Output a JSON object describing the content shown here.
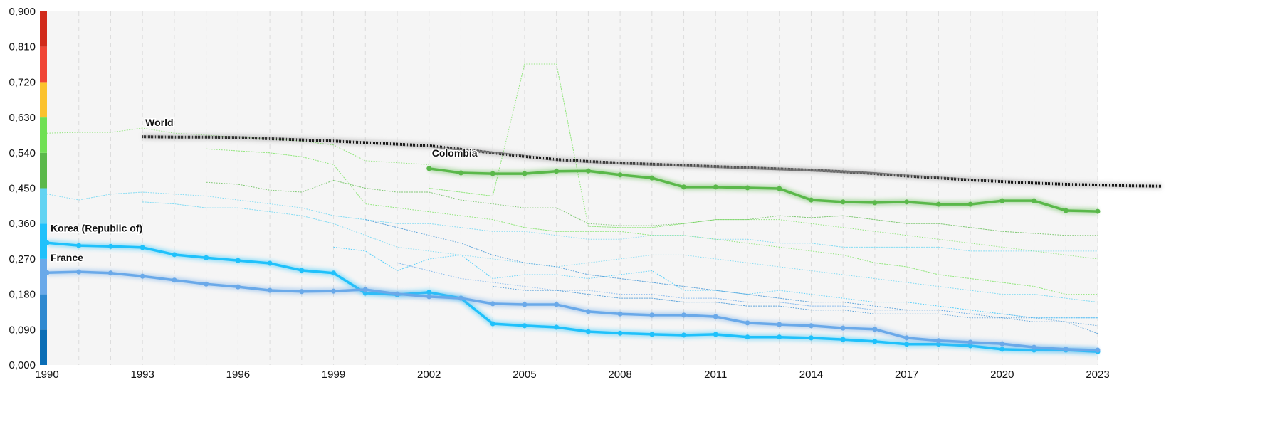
{
  "chart_data": {
    "type": "line",
    "title": "",
    "xlabel": "",
    "ylabel": "",
    "xlim": [
      1990,
      2023
    ],
    "ylim": [
      0,
      0.9
    ],
    "x_ticks": [
      "1990",
      "1993",
      "1996",
      "1999",
      "2002",
      "2005",
      "2008",
      "2011",
      "2014",
      "2017",
      "2020",
      "2023"
    ],
    "y_ticks": [
      "0,000",
      "0,090",
      "0,180",
      "0,270",
      "0,360",
      "0,450",
      "0,540",
      "0,630",
      "0,720",
      "0,810",
      "0,900"
    ],
    "grid": "vertical dashed, yearly",
    "color_scale": [
      "#0a6db5",
      "#2f89d0",
      "#6aa9e9",
      "#1fc1fb",
      "#62d3f2",
      "#5ab84a",
      "#70e054",
      "#fbc22e",
      "#f04535",
      "#d12a1a"
    ],
    "series": [
      {
        "name": "World",
        "color": "#222222",
        "start": 1993,
        "values": [
          0.581,
          0.58,
          0.58,
          0.579,
          0.576,
          0.573,
          0.57,
          0.566,
          0.562,
          0.558,
          0.549,
          0.54,
          0.531,
          0.523,
          0.518,
          0.514,
          0.511,
          0.508,
          0.505,
          0.502,
          0.499,
          0.496,
          0.492,
          0.487,
          0.481,
          0.476,
          0.471,
          0.467,
          0.463,
          0.46,
          0.458,
          0.456,
          0.455
        ]
      },
      {
        "name": "Colombia",
        "color": "#5ab84a",
        "start": 2002,
        "values": [
          0.5,
          0.489,
          0.487,
          0.487,
          0.493,
          0.494,
          0.484,
          0.476,
          0.453,
          0.453,
          0.451,
          0.449,
          0.42,
          0.415,
          0.413,
          0.415,
          0.409,
          0.409,
          0.418,
          0.418,
          0.393,
          0.391
        ]
      },
      {
        "name": "Korea (Republic of)",
        "color": "#1fc1fb",
        "start": 1990,
        "values": [
          0.311,
          0.304,
          0.302,
          0.299,
          0.281,
          0.273,
          0.266,
          0.259,
          0.241,
          0.234,
          0.183,
          0.179,
          0.185,
          0.17,
          0.105,
          0.1,
          0.096,
          0.085,
          0.081,
          0.078,
          0.076,
          0.078,
          0.071,
          0.071,
          0.069,
          0.065,
          0.06,
          0.053,
          0.053,
          0.049,
          0.04,
          0.038,
          0.038,
          0.034
        ]
      },
      {
        "name": "France",
        "color": "#6aa9e9",
        "start": 1990,
        "values": [
          0.235,
          0.237,
          0.234,
          0.226,
          0.216,
          0.206,
          0.199,
          0.19,
          0.187,
          0.188,
          0.192,
          0.181,
          0.174,
          0.17,
          0.156,
          0.154,
          0.154,
          0.136,
          0.13,
          0.127,
          0.127,
          0.123,
          0.107,
          0.103,
          0.1,
          0.094,
          0.091,
          0.069,
          0.062,
          0.058,
          0.054,
          0.045,
          0.04,
          0.038
        ]
      }
    ],
    "background_series": [
      {
        "color": "#70e054",
        "start": 1990,
        "values": [
          0.59,
          0.592,
          0.592,
          0.603,
          0.59,
          0.585,
          0.58,
          0.575,
          0.57,
          0.56,
          0.52,
          0.515,
          0.51
        ]
      },
      {
        "color": "#70e054",
        "start": 2002,
        "values": [
          0.45,
          0.44,
          0.43,
          0.766,
          0.766,
          0.353,
          0.35,
          0.35,
          0.36,
          0.37,
          0.37,
          0.37,
          0.36,
          0.35,
          0.34,
          0.33,
          0.32,
          0.31,
          0.3,
          0.29,
          0.28,
          0.27
        ]
      },
      {
        "color": "#5ab84a",
        "start": 1995,
        "values": [
          0.465,
          0.46,
          0.445,
          0.44,
          0.47,
          0.45,
          0.44,
          0.44,
          0.42,
          0.41,
          0.4,
          0.4,
          0.36,
          0.355,
          0.355,
          0.36,
          0.37,
          0.37,
          0.38,
          0.375,
          0.38,
          0.37,
          0.36,
          0.36,
          0.35,
          0.34,
          0.335,
          0.33,
          0.33
        ]
      },
      {
        "color": "#70e054",
        "start": 1995,
        "values": [
          0.55,
          0.545,
          0.54,
          0.53,
          0.51,
          0.41,
          0.4,
          0.39,
          0.38,
          0.37,
          0.35,
          0.34,
          0.34,
          0.34,
          0.33,
          0.33,
          0.32,
          0.31,
          0.3,
          0.29,
          0.28,
          0.26,
          0.25,
          0.23,
          0.22,
          0.21,
          0.2,
          0.18,
          0.18
        ]
      },
      {
        "color": "#62d3f2",
        "start": 1990,
        "values": [
          0.435,
          0.42,
          0.435,
          0.44,
          0.435,
          0.43,
          0.42,
          0.41,
          0.4,
          0.38,
          0.37,
          0.36,
          0.36,
          0.35,
          0.34,
          0.34,
          0.33,
          0.32,
          0.32,
          0.33,
          0.33,
          0.32,
          0.32,
          0.31,
          0.31,
          0.3,
          0.3,
          0.3,
          0.3,
          0.29,
          0.29,
          0.29,
          0.29,
          0.29
        ]
      },
      {
        "color": "#62d3f2",
        "start": 1993,
        "values": [
          0.415,
          0.41,
          0.4,
          0.4,
          0.39,
          0.38,
          0.36,
          0.33,
          0.3,
          0.29,
          0.28,
          0.27,
          0.26,
          0.25,
          0.26,
          0.27,
          0.28,
          0.28,
          0.27,
          0.26,
          0.25,
          0.24,
          0.23,
          0.22,
          0.21,
          0.2,
          0.19,
          0.18,
          0.18,
          0.17,
          0.16
        ]
      },
      {
        "color": "#1fc1fb",
        "start": 1999,
        "values": [
          0.3,
          0.29,
          0.24,
          0.27,
          0.28,
          0.22,
          0.23,
          0.23,
          0.22,
          0.23,
          0.24,
          0.19,
          0.19,
          0.18,
          0.19,
          0.18,
          0.17,
          0.16,
          0.16,
          0.15,
          0.14,
          0.13,
          0.12,
          0.12,
          0.12
        ]
      },
      {
        "color": "#2f89d0",
        "start": 2000,
        "values": [
          0.37,
          0.35,
          0.33,
          0.31,
          0.28,
          0.26,
          0.25,
          0.23,
          0.22,
          0.21,
          0.2,
          0.19,
          0.18,
          0.17,
          0.16,
          0.16,
          0.15,
          0.14,
          0.14,
          0.13,
          0.12,
          0.12,
          0.11,
          0.1
        ]
      },
      {
        "color": "#6aa9e9",
        "start": 2001,
        "values": [
          0.26,
          0.24,
          0.22,
          0.21,
          0.2,
          0.19,
          0.19,
          0.18,
          0.18,
          0.17,
          0.17,
          0.16,
          0.16,
          0.15,
          0.15,
          0.14,
          0.14,
          0.14,
          0.13,
          0.13,
          0.12,
          0.12,
          0.12
        ]
      },
      {
        "color": "#2f89d0",
        "start": 2004,
        "values": [
          0.2,
          0.19,
          0.19,
          0.18,
          0.17,
          0.17,
          0.16,
          0.16,
          0.15,
          0.15,
          0.14,
          0.14,
          0.13,
          0.13,
          0.13,
          0.12,
          0.12,
          0.11,
          0.11,
          0.08
        ]
      }
    ]
  }
}
